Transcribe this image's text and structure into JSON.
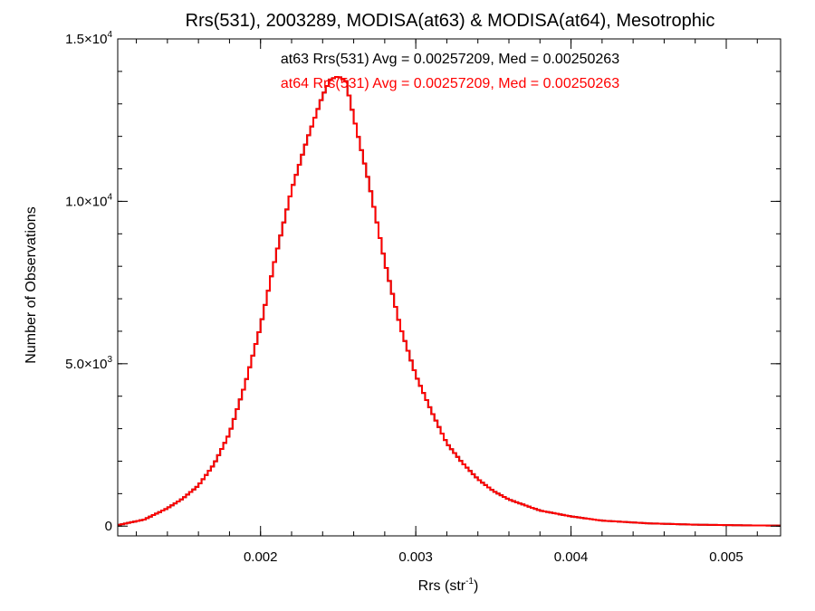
{
  "chart_data": {
    "type": "line",
    "title": "Rrs(531), 2003289, MODISA(at63) & MODISA(at64), Mesotrophic",
    "xlabel": {
      "base": "Rrs (str",
      "sup": "-1",
      "tail": ")"
    },
    "ylabel": "Number of Observations",
    "xlim": [
      0.00108,
      0.00535
    ],
    "ylim": [
      -300,
      15000
    ],
    "x_ticks": [
      {
        "value": 0.002,
        "label": "0.002"
      },
      {
        "value": 0.003,
        "label": "0.003"
      },
      {
        "value": 0.004,
        "label": "0.004"
      },
      {
        "value": 0.005,
        "label": "0.005"
      }
    ],
    "y_ticks": [
      {
        "value": 0,
        "mant": "0",
        "exp": ""
      },
      {
        "value": 5000,
        "mant": "5.0×10",
        "exp": "3"
      },
      {
        "value": 10000,
        "mant": "1.0×10",
        "exp": "4"
      },
      {
        "value": 15000,
        "mant": "1.5×10",
        "exp": "4"
      }
    ],
    "x_minor_step": 0.0002,
    "y_minor_step": 1000,
    "annotations": [
      {
        "text": "at63 Rrs(531) Avg = 0.00257209, Med = 0.00250263",
        "color": "#000000"
      },
      {
        "text": "at64 Rrs(531) Avg = 0.00257209, Med = 0.00250263",
        "color": "#ff0000"
      }
    ],
    "series": [
      {
        "color": "#000000",
        "overlaid_by_next": true,
        "x": [
          0.00108,
          0.00125,
          0.0014,
          0.0015,
          0.0016,
          0.0017,
          0.0018,
          0.0019,
          0.002,
          0.0021,
          0.0022,
          0.0023,
          0.0024,
          0.00245,
          0.0025,
          0.00255,
          0.0026,
          0.0027,
          0.0028,
          0.0029,
          0.003,
          0.0031,
          0.0032,
          0.0033,
          0.0034,
          0.0035,
          0.0036,
          0.0038,
          0.004,
          0.0042,
          0.0045,
          0.0048,
          0.0051,
          0.00535
        ],
        "y": [
          30,
          200,
          550,
          850,
          1250,
          1900,
          2850,
          4350,
          6150,
          8350,
          10350,
          11900,
          13250,
          13750,
          13850,
          13700,
          12600,
          10550,
          8150,
          6150,
          4650,
          3550,
          2550,
          1950,
          1450,
          1080,
          820,
          480,
          300,
          170,
          85,
          45,
          25,
          15
        ]
      },
      {
        "color": "#ff0000",
        "x": [
          0.00108,
          0.00125,
          0.0014,
          0.0015,
          0.0016,
          0.0017,
          0.0018,
          0.0019,
          0.002,
          0.0021,
          0.0022,
          0.0023,
          0.0024,
          0.00245,
          0.0025,
          0.00255,
          0.0026,
          0.0027,
          0.0028,
          0.0029,
          0.003,
          0.0031,
          0.0032,
          0.0033,
          0.0034,
          0.0035,
          0.0036,
          0.0038,
          0.004,
          0.0042,
          0.0045,
          0.0048,
          0.0051,
          0.00535
        ],
        "y": [
          30,
          200,
          550,
          850,
          1250,
          1900,
          2850,
          4350,
          6150,
          8350,
          10350,
          11900,
          13250,
          13750,
          13850,
          13700,
          12600,
          10550,
          8150,
          6150,
          4650,
          3550,
          2550,
          1950,
          1450,
          1080,
          820,
          480,
          300,
          170,
          85,
          45,
          25,
          15
        ]
      }
    ],
    "grid": false,
    "legend": "none"
  }
}
